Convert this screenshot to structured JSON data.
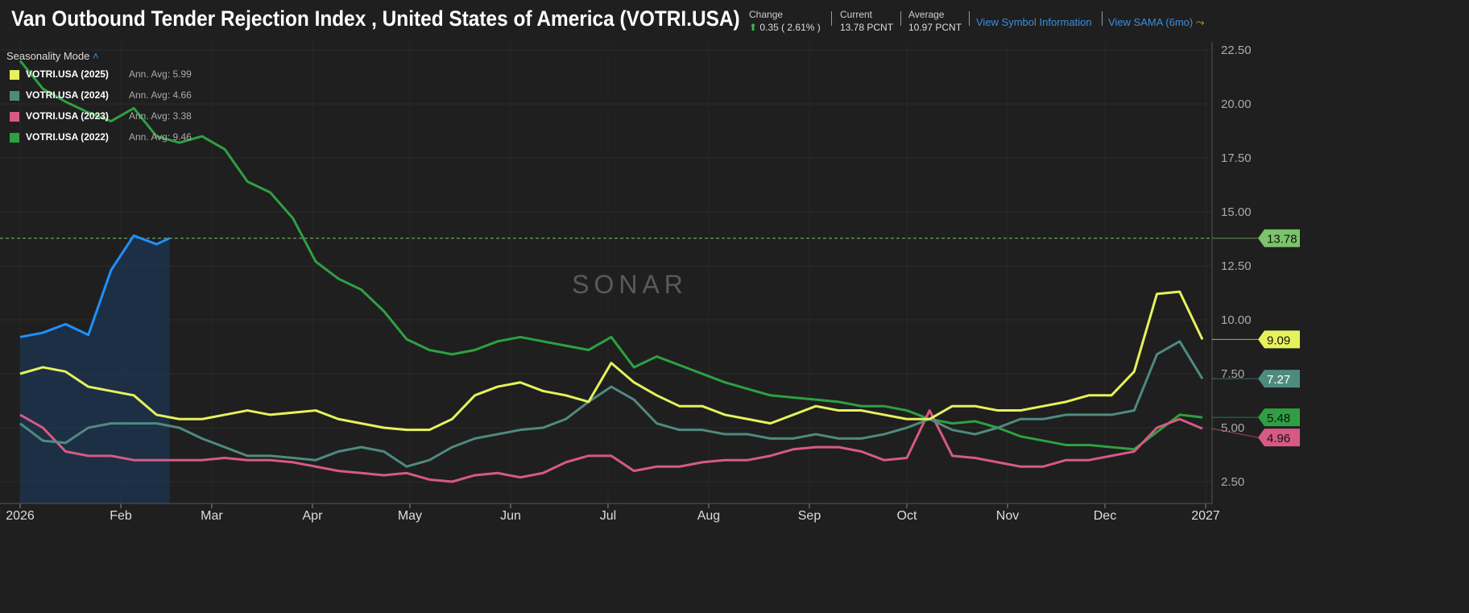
{
  "header": {
    "title": "Van Outbound Tender Rejection Index , United States of America (VOTRI.USA)",
    "change_label": "Change",
    "change_value": "0.35 ( 2.61% )",
    "current_label": "Current",
    "current_value": "13.78 PCNT",
    "average_label": "Average",
    "average_value": "10.97 PCNT",
    "view_symbol": "View Symbol Information",
    "view_sama": "View SAMA (6mo)"
  },
  "legend": {
    "mode_label": "Seasonality Mode",
    "items": [
      {
        "name": "VOTRI.USA (2025)",
        "avg": "Ann. Avg: 5.99",
        "color": "#e6f25c"
      },
      {
        "name": "VOTRI.USA (2024)",
        "avg": "Ann. Avg: 4.66",
        "color": "#4f8a80"
      },
      {
        "name": "VOTRI.USA (2023)",
        "avg": "Ann. Avg: 3.38",
        "color": "#d65a83"
      },
      {
        "name": "VOTRI.USA (2022)",
        "avg": "Ann. Avg: 9.46",
        "color": "#2ea043"
      }
    ]
  },
  "watermark": "SONAR",
  "chart_data": {
    "type": "line",
    "title": "Van Outbound Tender Rejection Index , United States of America (VOTRI.USA)",
    "x_ticks": [
      "2026",
      "Feb",
      "Mar",
      "Apr",
      "May",
      "Jun",
      "Jul",
      "Aug",
      "Sep",
      "Oct",
      "Nov",
      "Dec",
      "2027"
    ],
    "y_ticks": [
      "22.50",
      "20.00",
      "17.50",
      "15.00",
      "12.50",
      "10.00",
      "7.50",
      "5.00",
      "2.50"
    ],
    "ylim": [
      2.5,
      22.5
    ],
    "grid": true,
    "legend_position": "top-left",
    "current_line": 13.78,
    "weekly_start": "01-01",
    "series": [
      {
        "name": "VOTRI.USA (2025)",
        "color": "#e6f25c",
        "last_label": "9.09",
        "values": [
          7.5,
          7.8,
          7.6,
          6.9,
          6.7,
          6.5,
          5.6,
          5.4,
          5.4,
          5.6,
          5.8,
          5.6,
          5.7,
          5.8,
          5.4,
          5.2,
          5.0,
          4.9,
          4.9,
          5.4,
          6.5,
          6.9,
          7.1,
          6.7,
          6.5,
          6.2,
          8.0,
          7.1,
          6.5,
          6.0,
          6.0,
          5.6,
          5.4,
          5.2,
          5.6,
          6.0,
          5.8,
          5.8,
          5.6,
          5.4,
          5.4,
          6.0,
          6.0,
          5.8,
          5.8,
          6.0,
          6.2,
          6.5,
          6.5,
          7.6,
          11.2,
          11.3,
          9.09
        ]
      },
      {
        "name": "VOTRI.USA (2024)",
        "color": "#4f8a80",
        "last_label": "7.27",
        "values": [
          5.2,
          4.4,
          4.3,
          5.0,
          5.2,
          5.2,
          5.2,
          5.0,
          4.5,
          4.1,
          3.7,
          3.7,
          3.6,
          3.5,
          3.9,
          4.1,
          3.9,
          3.2,
          3.5,
          4.1,
          4.5,
          4.7,
          4.9,
          5.0,
          5.4,
          6.2,
          6.9,
          6.3,
          5.2,
          4.9,
          4.9,
          4.7,
          4.7,
          4.5,
          4.5,
          4.7,
          4.5,
          4.5,
          4.7,
          5.0,
          5.4,
          4.9,
          4.7,
          5.0,
          5.4,
          5.4,
          5.6,
          5.6,
          5.6,
          5.8,
          8.4,
          9.0,
          7.27
        ]
      },
      {
        "name": "VOTRI.USA (2023)",
        "color": "#d65a83",
        "last_label": "4.96",
        "values": [
          5.6,
          5.0,
          3.9,
          3.7,
          3.7,
          3.5,
          3.5,
          3.5,
          3.5,
          3.6,
          3.5,
          3.5,
          3.4,
          3.2,
          3.0,
          2.9,
          2.8,
          2.9,
          2.6,
          2.5,
          2.8,
          2.9,
          2.7,
          2.9,
          3.4,
          3.7,
          3.7,
          3.0,
          3.2,
          3.2,
          3.4,
          3.5,
          3.5,
          3.7,
          4.0,
          4.1,
          4.1,
          3.9,
          3.5,
          3.6,
          5.8,
          3.7,
          3.6,
          3.4,
          3.2,
          3.2,
          3.5,
          3.5,
          3.7,
          3.9,
          5.0,
          5.4,
          4.96
        ]
      },
      {
        "name": "VOTRI.USA (2022)",
        "color": "#2ea043",
        "last_label": "5.48",
        "values": [
          22.0,
          20.7,
          20.1,
          19.6,
          19.2,
          19.8,
          18.5,
          18.2,
          18.5,
          17.9,
          16.4,
          15.9,
          14.7,
          12.7,
          11.9,
          11.4,
          10.4,
          9.1,
          8.6,
          8.4,
          8.6,
          9.0,
          9.2,
          9.0,
          8.8,
          8.6,
          9.2,
          7.8,
          8.3,
          7.9,
          7.5,
          7.1,
          6.8,
          6.5,
          6.4,
          6.3,
          6.2,
          6.0,
          6.0,
          5.8,
          5.4,
          5.2,
          5.3,
          5.0,
          4.6,
          4.4,
          4.2,
          4.2,
          4.1,
          4.0,
          4.8,
          5.6,
          5.48
        ]
      },
      {
        "name": "VOTRI.USA (2026)",
        "color": "#1e90ff",
        "last_label": "13.78",
        "label_color": "#7cc36b",
        "dates": [
          "01-01",
          "01-08",
          "01-15",
          "01-22",
          "01-29",
          "02-05",
          "02-12",
          "02-16"
        ],
        "values": [
          9.2,
          9.4,
          9.8,
          9.3,
          12.3,
          13.9,
          13.5,
          13.78
        ]
      }
    ]
  }
}
